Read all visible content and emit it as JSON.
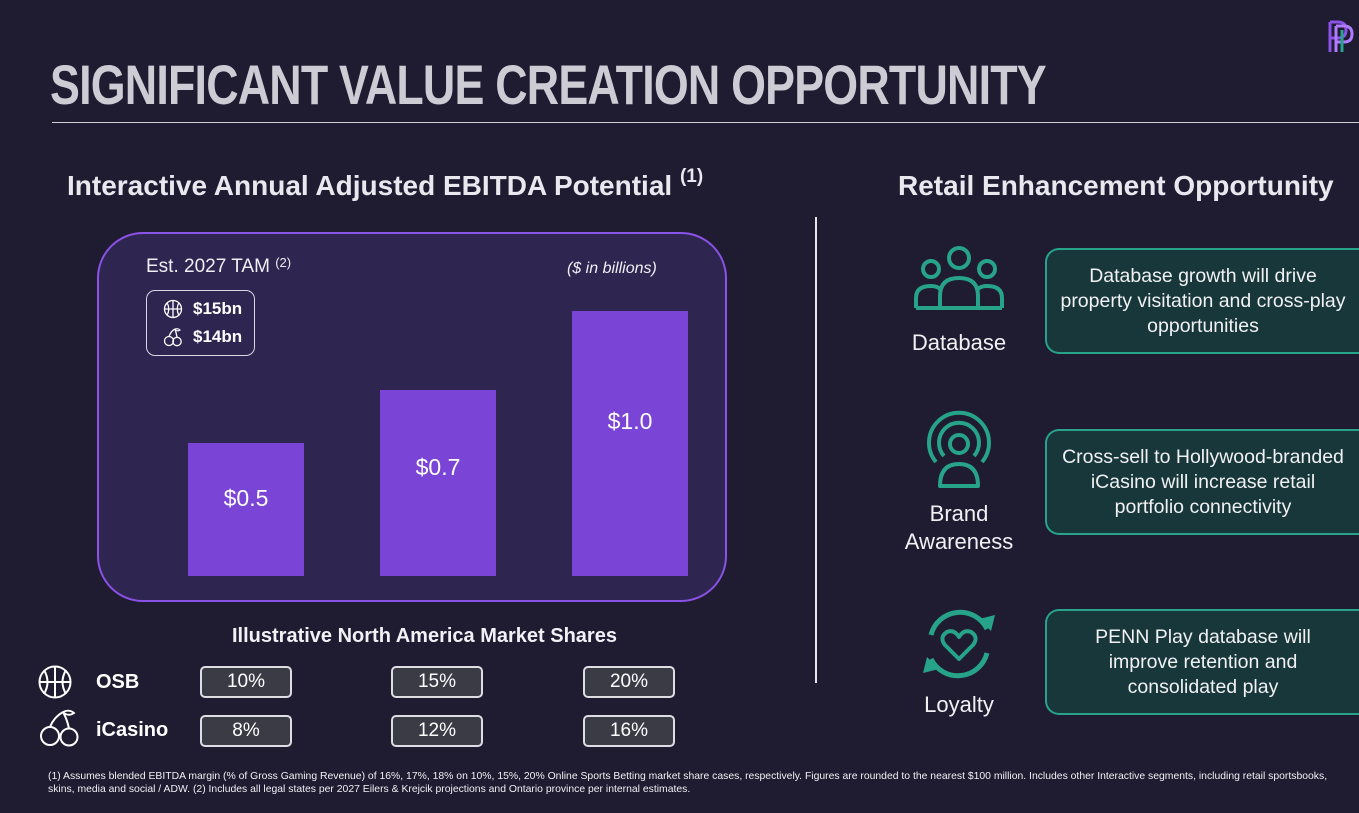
{
  "title": "SIGNIFICANT VALUE CREATION OPPORTUNITY",
  "left_section": {
    "heading": "Interactive Annual Adjusted EBITDA Potential",
    "heading_note": "(1)",
    "tam_label": "Est. 2027 TAM",
    "tam_note": "(2)",
    "units": "($ in billions)",
    "tam_items": [
      {
        "icon": "basketball-icon",
        "value": "$15bn"
      },
      {
        "icon": "cherries-icon",
        "value": "$14bn"
      }
    ]
  },
  "chart_data": {
    "type": "bar",
    "categories": [
      "10% / 8%",
      "15% / 12%",
      "20% / 16%"
    ],
    "values": [
      0.5,
      0.7,
      1.0
    ],
    "value_labels": [
      "$0.5",
      "$0.7",
      "$1.0"
    ],
    "title": "",
    "xlabel": "",
    "ylabel": "",
    "units": "$ in billions",
    "ylim": [
      0,
      1.15
    ],
    "grid": false
  },
  "market_shares": {
    "heading": "Illustrative North America Market Shares",
    "rows": [
      {
        "icon": "basketball-icon",
        "label": "OSB",
        "values": [
          "10%",
          "15%",
          "20%"
        ]
      },
      {
        "icon": "cherries-icon",
        "label": "iCasino",
        "values": [
          "8%",
          "12%",
          "16%"
        ]
      }
    ]
  },
  "right_section": {
    "heading": "Retail Enhancement Opportunity",
    "items": [
      {
        "icon": "people-group-icon",
        "label": "Database",
        "text": "Database growth will drive property visitation and cross-play opportunities"
      },
      {
        "icon": "broadcast-person-icon",
        "label": "Brand Awareness",
        "text": "Cross-sell to Hollywood-branded iCasino will increase retail portfolio connectivity"
      },
      {
        "icon": "heart-cycle-icon",
        "label": "Loyalty",
        "text": "PENN Play database will improve retention and consolidated play"
      }
    ]
  },
  "footnote": "(1) Assumes blended EBITDA margin (% of Gross Gaming Revenue) of 16%, 17%, 18% on 10%, 15%, 20% Online Sports Betting market share cases, respectively. Figures are rounded to the nearest $100 million. Includes other Interactive segments, including retail sportsbooks, skins, media and social / ADW. (2) Includes all legal states per 2027 Eilers & Krejcik projections and Ontario province per internal estimates.",
  "colors": {
    "background": "#1f1b31",
    "bar": "#7a45d6",
    "panel_border": "#8a52e6",
    "teal": "#27a38a",
    "card_fill": "#17373a"
  }
}
